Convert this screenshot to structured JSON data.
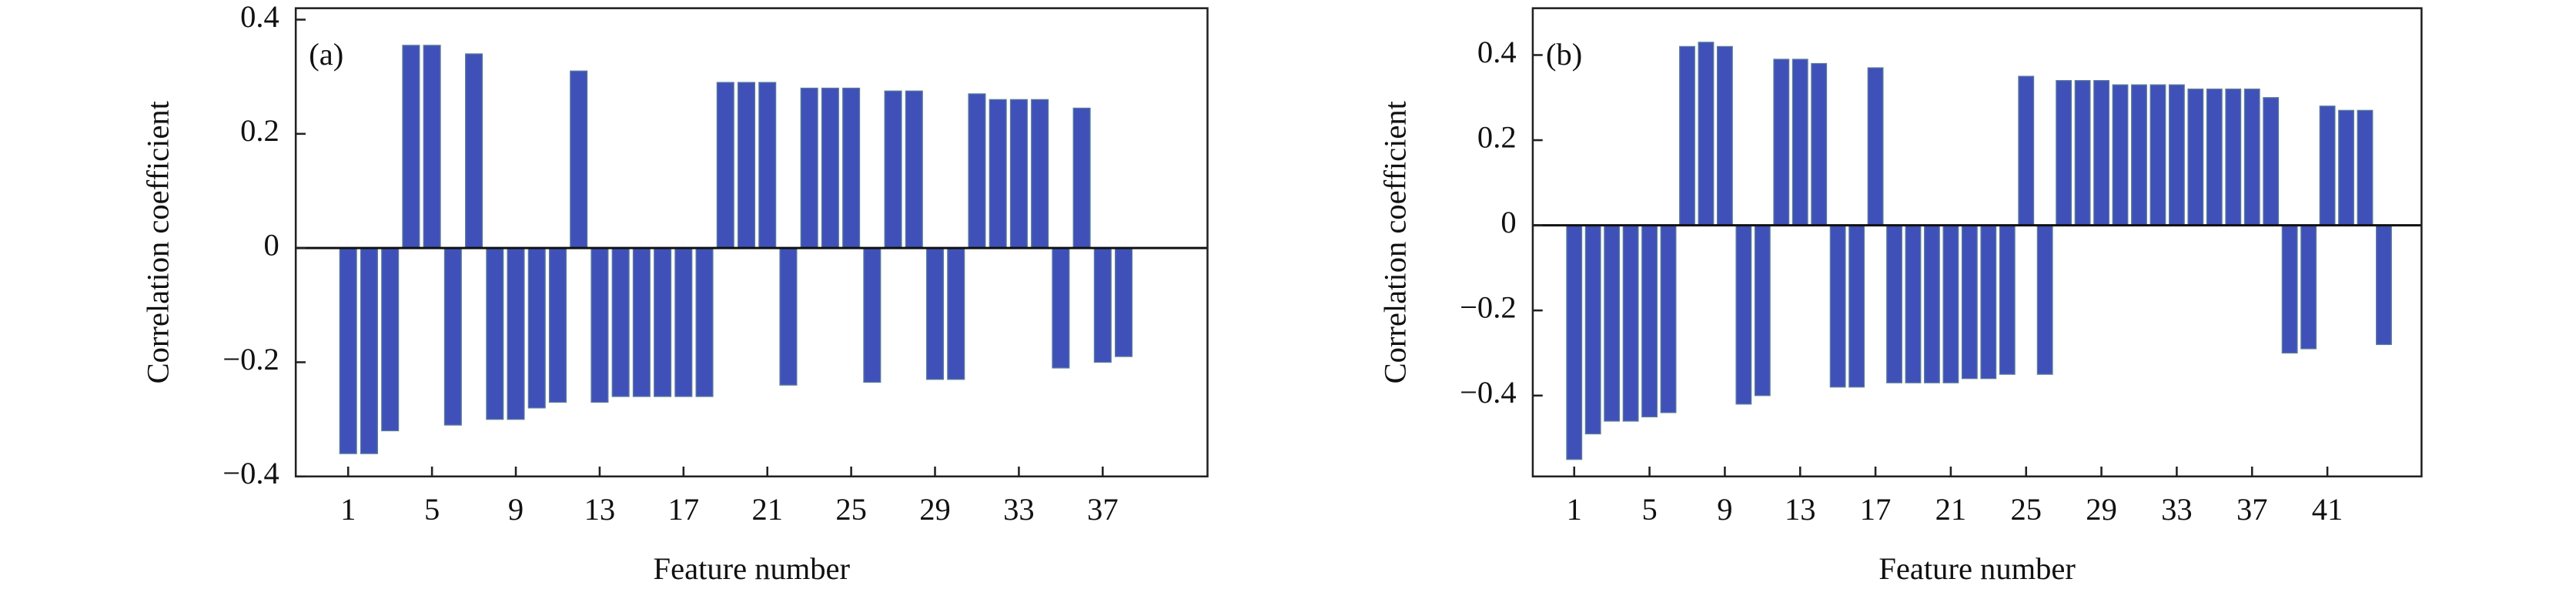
{
  "chart_data": [
    {
      "type": "bar",
      "annotation": "(a)",
      "x_label": "Feature number",
      "y_label": "Correlation coefficient",
      "x": [
        1,
        2,
        3,
        4,
        5,
        6,
        7,
        8,
        9,
        10,
        11,
        12,
        13,
        14,
        15,
        16,
        17,
        18,
        19,
        20,
        21,
        22,
        23,
        24,
        25,
        26,
        27,
        28,
        29,
        30,
        31,
        32,
        33,
        34,
        35,
        36,
        37,
        38
      ],
      "values": [
        -0.36,
        -0.36,
        -0.32,
        0.355,
        0.355,
        -0.31,
        0.34,
        -0.3,
        -0.3,
        -0.28,
        -0.27,
        0.31,
        -0.27,
        -0.26,
        -0.26,
        -0.26,
        -0.26,
        -0.26,
        0.29,
        0.29,
        0.29,
        -0.24,
        0.28,
        0.28,
        0.28,
        -0.235,
        0.275,
        0.275,
        -0.23,
        -0.23,
        0.27,
        0.26,
        0.26,
        0.26,
        -0.21,
        0.245,
        -0.2,
        -0.19
      ],
      "color": "#3f51b8",
      "xlim": [
        -1.5,
        42
      ],
      "xticks": [
        1,
        5,
        9,
        13,
        17,
        21,
        25,
        29,
        33,
        37
      ],
      "ylim": [
        -0.4,
        0.42
      ],
      "yticks": [
        {
          "value": -0.4,
          "label": "−0.4"
        },
        {
          "value": -0.2,
          "label": "−0.2"
        },
        0,
        0.2,
        0.4
      ]
    },
    {
      "type": "bar",
      "annotation": "(b)",
      "x_label": "Feature number",
      "y_label": "Correlation coefficient",
      "x": [
        1,
        2,
        3,
        4,
        5,
        6,
        7,
        8,
        9,
        10,
        11,
        12,
        13,
        14,
        15,
        16,
        17,
        18,
        19,
        20,
        21,
        22,
        23,
        24,
        25,
        26,
        27,
        28,
        29,
        30,
        31,
        32,
        33,
        34,
        35,
        36,
        37,
        38,
        39,
        40,
        41,
        42,
        43,
        44
      ],
      "values": [
        -0.55,
        -0.49,
        -0.46,
        -0.46,
        -0.45,
        -0.44,
        0.42,
        0.43,
        0.42,
        -0.42,
        -0.4,
        0.39,
        0.39,
        0.38,
        -0.38,
        -0.38,
        0.37,
        -0.37,
        -0.37,
        -0.37,
        -0.37,
        -0.36,
        -0.36,
        -0.35,
        0.35,
        -0.35,
        0.34,
        0.34,
        0.34,
        0.33,
        0.33,
        0.33,
        0.33,
        0.32,
        0.32,
        0.32,
        0.32,
        0.3,
        -0.3,
        -0.29,
        0.28,
        0.27,
        0.27,
        -0.28
      ],
      "color": "#3f51b8",
      "xlim": [
        -1.2,
        46
      ],
      "xticks": [
        1,
        5,
        9,
        13,
        17,
        21,
        25,
        29,
        33,
        37,
        41
      ],
      "ylim": [
        -0.59,
        0.51
      ],
      "yticks": [
        {
          "value": -0.4,
          "label": "−0.4"
        },
        {
          "value": -0.2,
          "label": "−0.2"
        },
        0,
        0.2,
        0.4
      ]
    }
  ]
}
